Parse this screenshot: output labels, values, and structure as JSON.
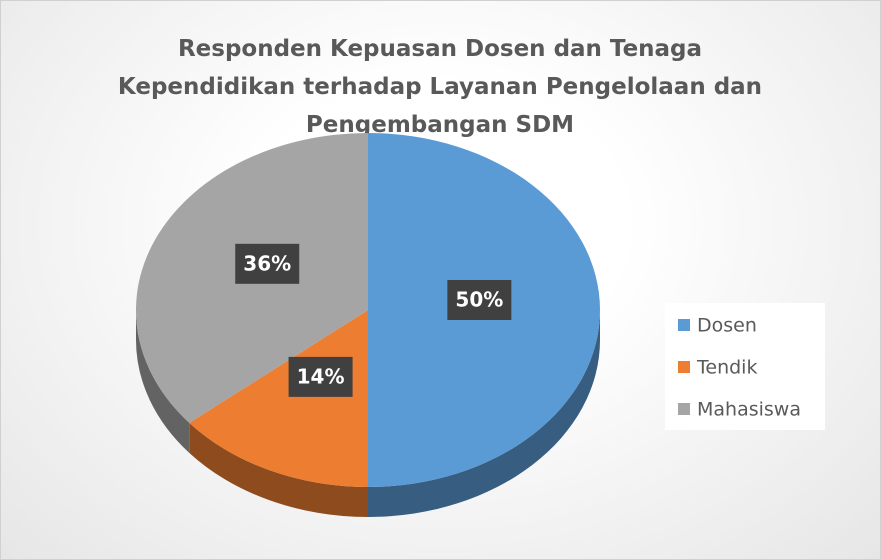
{
  "chart_data": {
    "type": "pie",
    "title": "Responden Kepuasan Dosen dan Tenaga Kependidikan terhadap Layanan Pengelolaan dan Pengembangan SDM",
    "categories": [
      "Dosen",
      "Tendik",
      "Mahasiswa"
    ],
    "values": [
      50,
      14,
      36
    ],
    "value_labels": [
      "50%",
      "14%",
      "36%"
    ],
    "colors": [
      "#5b9bd5",
      "#ed7d31",
      "#a5a5a5"
    ],
    "legend": "right"
  }
}
